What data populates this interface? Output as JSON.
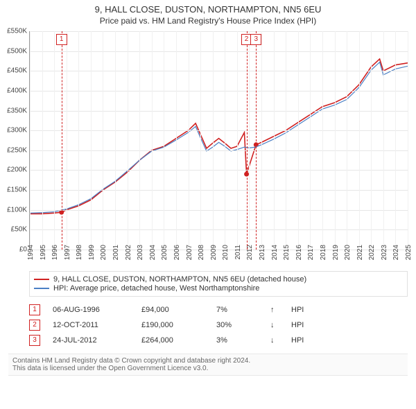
{
  "title": {
    "line1": "9, HALL CLOSE, DUSTON, NORTHAMPTON, NN5 6EU",
    "line2": "Price paid vs. HM Land Registry's House Price Index (HPI)"
  },
  "chart": {
    "type": "line",
    "x_min": 1994,
    "x_max": 2025,
    "y_min": 0,
    "y_max": 550000,
    "y_ticks": [
      0,
      50000,
      100000,
      150000,
      200000,
      250000,
      300000,
      350000,
      400000,
      450000,
      500000,
      550000
    ],
    "y_tick_labels": [
      "£0",
      "£50K",
      "£100K",
      "£150K",
      "£200K",
      "£250K",
      "£300K",
      "£350K",
      "£400K",
      "£450K",
      "£500K",
      "£550K"
    ],
    "x_ticks": [
      1994,
      1995,
      1996,
      1997,
      1998,
      1999,
      2000,
      2001,
      2002,
      2003,
      2004,
      2005,
      2006,
      2007,
      2008,
      2009,
      2010,
      2011,
      2012,
      2013,
      2014,
      2015,
      2016,
      2017,
      2018,
      2019,
      2020,
      2021,
      2022,
      2023,
      2024,
      2025
    ],
    "grid_color": "#e6e6e6",
    "background_color": "#ffffff",
    "series": [
      {
        "name": "red",
        "color": "#d02020",
        "width": 1.6,
        "points": [
          [
            1994,
            90000
          ],
          [
            1995,
            90000
          ],
          [
            1996,
            92000
          ],
          [
            1996.6,
            94000
          ],
          [
            1997,
            100000
          ],
          [
            1998,
            110000
          ],
          [
            1999,
            125000
          ],
          [
            2000,
            150000
          ],
          [
            2001,
            170000
          ],
          [
            2002,
            195000
          ],
          [
            2003,
            225000
          ],
          [
            2004,
            250000
          ],
          [
            2005,
            260000
          ],
          [
            2006,
            280000
          ],
          [
            2007,
            300000
          ],
          [
            2007.6,
            318000
          ],
          [
            2008,
            290000
          ],
          [
            2008.5,
            255000
          ],
          [
            2009,
            268000
          ],
          [
            2009.5,
            280000
          ],
          [
            2010,
            268000
          ],
          [
            2010.5,
            255000
          ],
          [
            2011,
            260000
          ],
          [
            2011.6,
            295000
          ],
          [
            2011.78,
            190000
          ],
          [
            2012.56,
            264000
          ],
          [
            2013,
            270000
          ],
          [
            2014,
            285000
          ],
          [
            2015,
            300000
          ],
          [
            2016,
            320000
          ],
          [
            2017,
            340000
          ],
          [
            2018,
            360000
          ],
          [
            2019,
            370000
          ],
          [
            2020,
            385000
          ],
          [
            2021,
            415000
          ],
          [
            2022,
            460000
          ],
          [
            2022.7,
            480000
          ],
          [
            2023,
            450000
          ],
          [
            2024,
            465000
          ],
          [
            2025,
            470000
          ]
        ],
        "markers": [
          {
            "x": 1996.6,
            "y": 94000
          },
          {
            "x": 2011.78,
            "y": 190000
          },
          {
            "x": 2012.56,
            "y": 264000
          }
        ]
      },
      {
        "name": "blue",
        "color": "#4a7fc4",
        "width": 1.2,
        "points": [
          [
            1994,
            92000
          ],
          [
            1995,
            93000
          ],
          [
            1996,
            95000
          ],
          [
            1997,
            102000
          ],
          [
            1998,
            113000
          ],
          [
            1999,
            128000
          ],
          [
            2000,
            152000
          ],
          [
            2001,
            172000
          ],
          [
            2002,
            198000
          ],
          [
            2003,
            225000
          ],
          [
            2004,
            248000
          ],
          [
            2005,
            258000
          ],
          [
            2006,
            276000
          ],
          [
            2007,
            295000
          ],
          [
            2007.6,
            310000
          ],
          [
            2008,
            282000
          ],
          [
            2008.5,
            248000
          ],
          [
            2009,
            258000
          ],
          [
            2009.5,
            270000
          ],
          [
            2010,
            260000
          ],
          [
            2010.5,
            248000
          ],
          [
            2011,
            252000
          ],
          [
            2011.6,
            258000
          ],
          [
            2012,
            256000
          ],
          [
            2012.5,
            258000
          ],
          [
            2013,
            264000
          ],
          [
            2014,
            278000
          ],
          [
            2015,
            294000
          ],
          [
            2016,
            314000
          ],
          [
            2017,
            334000
          ],
          [
            2018,
            354000
          ],
          [
            2019,
            364000
          ],
          [
            2020,
            378000
          ],
          [
            2021,
            408000
          ],
          [
            2022,
            452000
          ],
          [
            2022.7,
            472000
          ],
          [
            2023,
            440000
          ],
          [
            2024,
            455000
          ],
          [
            2025,
            462000
          ]
        ]
      }
    ],
    "events": [
      {
        "n": "1",
        "x": 1996.6
      },
      {
        "n": "2",
        "x": 2011.78
      },
      {
        "n": "3",
        "x": 2012.56
      }
    ]
  },
  "legend": [
    {
      "color": "#d02020",
      "label": "9, HALL CLOSE, DUSTON, NORTHAMPTON, NN5 6EU (detached house)"
    },
    {
      "color": "#4a7fc4",
      "label": "HPI: Average price, detached house, West Northamptonshire"
    }
  ],
  "events_table": [
    {
      "n": "1",
      "date": "06-AUG-1996",
      "price": "£94,000",
      "pct": "7%",
      "arrow": "↑",
      "src": "HPI"
    },
    {
      "n": "2",
      "date": "12-OCT-2011",
      "price": "£190,000",
      "pct": "30%",
      "arrow": "↓",
      "src": "HPI"
    },
    {
      "n": "3",
      "date": "24-JUL-2012",
      "price": "£264,000",
      "pct": "3%",
      "arrow": "↓",
      "src": "HPI"
    }
  ],
  "footer": {
    "line1": "Contains HM Land Registry data © Crown copyright and database right 2024.",
    "line2": "This data is licensed under the Open Government Licence v3.0."
  }
}
